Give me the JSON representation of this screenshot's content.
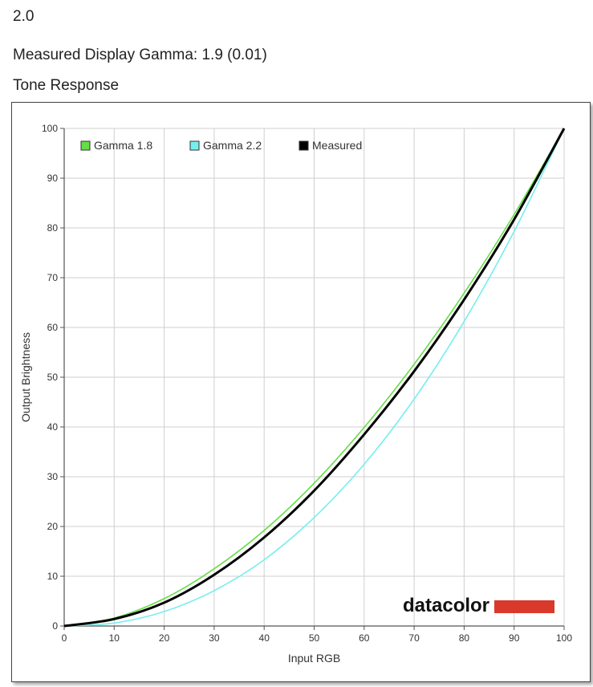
{
  "header": {
    "line1": "2.0",
    "line2": "Measured Display Gamma: 1.9 (0.01)",
    "line3": "Tone Response"
  },
  "brand": {
    "name": "datacolor",
    "bar_color": "#d9392b"
  },
  "chart_data": {
    "type": "line",
    "title": "",
    "xlabel": "Input RGB",
    "ylabel": "Output Brightness",
    "xlim": [
      0,
      100
    ],
    "ylim": [
      0,
      100
    ],
    "xticks": [
      0,
      10,
      20,
      30,
      40,
      50,
      60,
      70,
      80,
      90,
      100
    ],
    "yticks": [
      0,
      10,
      20,
      30,
      40,
      50,
      60,
      70,
      80,
      90,
      100
    ],
    "grid": true,
    "legend_position": "top-left",
    "x": [
      0,
      10,
      20,
      30,
      40,
      50,
      60,
      70,
      80,
      90,
      100
    ],
    "series": [
      {
        "name": "Gamma 1.8",
        "color": "#66dd44",
        "values": [
          0,
          1.6,
          5.5,
          11.5,
          19.2,
          28.7,
          39.9,
          52.6,
          66.9,
          82.7,
          100
        ]
      },
      {
        "name": "Gamma 2.2",
        "color": "#77eeee",
        "values": [
          0,
          0.6,
          2.9,
          7.1,
          13.3,
          21.8,
          32.5,
          45.6,
          61.2,
          79.3,
          100
        ]
      },
      {
        "name": "Measured",
        "color": "#000000",
        "values": [
          0,
          1.4,
          4.7,
          10.3,
          17.8,
          27.2,
          38.5,
          51.2,
          65.6,
          81.7,
          100
        ]
      }
    ]
  }
}
